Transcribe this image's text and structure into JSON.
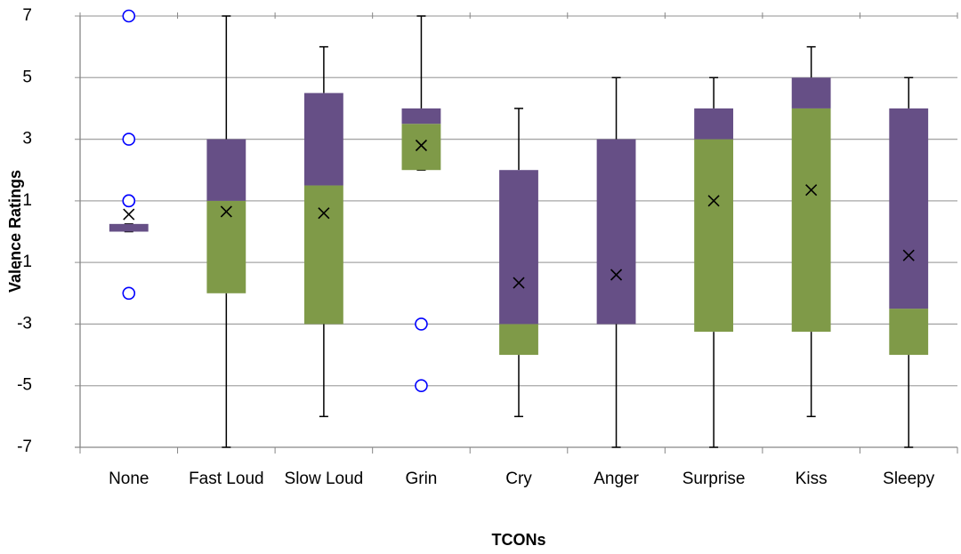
{
  "chart_data": {
    "type": "box",
    "x_label": "TCONs",
    "y_label": "Valence Ratings",
    "categories": [
      "None",
      "Fast Loud",
      "Slow Loud",
      "Grin",
      "Cry",
      "Anger",
      "Surprise",
      "Kiss",
      "Sleepy"
    ],
    "min": [
      0,
      -7,
      -6,
      2,
      -6,
      -7,
      -7,
      -6,
      -7
    ],
    "q1": [
      0,
      -2,
      -3,
      2,
      -4,
      -3,
      -3.25,
      -3.25,
      -4
    ],
    "median": [
      0,
      1,
      1.5,
      3.5,
      -3,
      -3,
      3,
      4,
      -2.5
    ],
    "q3": [
      0.25,
      3,
      4.5,
      4,
      2,
      3,
      4,
      5,
      4
    ],
    "max": [
      0.25,
      7,
      6,
      7,
      4,
      5,
      5,
      6,
      5
    ],
    "mean": [
      0.56,
      0.65,
      0.6,
      2.8,
      -1.66,
      -1.4,
      1,
      1.35,
      -0.77
    ],
    "outliers": [
      [
        7,
        3,
        1,
        1,
        -2
      ],
      [],
      [],
      [
        -3,
        -5
      ],
      [],
      [],
      [],
      [],
      []
    ],
    "lower_color": "#7f9a48",
    "upper_color": "#664f86",
    "outlier_color": "#0000ff",
    "ylim": [
      -7,
      7
    ],
    "yticks": [
      -7,
      -5,
      -3,
      -1,
      1,
      3,
      5,
      7
    ],
    "grid": true
  }
}
